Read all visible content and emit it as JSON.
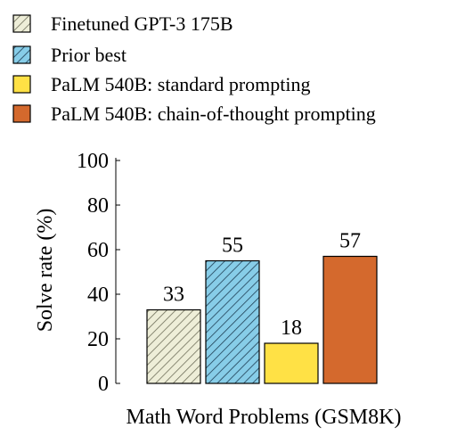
{
  "chart_data": {
    "type": "bar",
    "title": "",
    "xlabel": "Math Word Problems (GSM8K)",
    "ylabel": "Solve rate (%)",
    "ylim": [
      0,
      100
    ],
    "yticks": [
      "0",
      "20",
      "40",
      "60",
      "80",
      "100"
    ],
    "legend_position": "top",
    "series": [
      {
        "name": "Finetuned GPT-3 175B",
        "value": 33,
        "value_label": "33",
        "color": "#eeeed8",
        "pattern": "diagonal-hatch"
      },
      {
        "name": "Prior best",
        "value": 55,
        "value_label": "55",
        "color": "#87cde8",
        "pattern": "diagonal-hatch"
      },
      {
        "name": "PaLM 540B: standard prompting",
        "value": 18,
        "value_label": "18",
        "color": "#ffe145",
        "pattern": "solid"
      },
      {
        "name": "PaLM 540B: chain-of-thought prompting",
        "value": 57,
        "value_label": "57",
        "color": "#d4692d",
        "pattern": "solid"
      }
    ]
  }
}
